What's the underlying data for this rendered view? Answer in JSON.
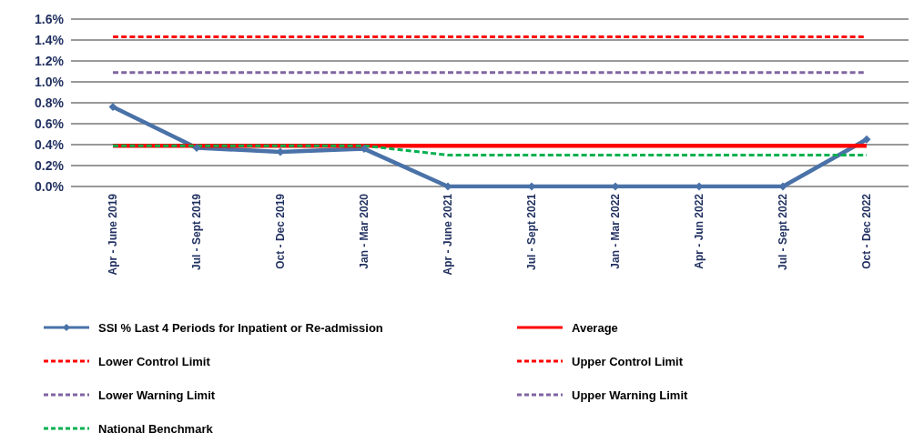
{
  "chart_data": {
    "type": "line",
    "categories": [
      "Apr - June 2019",
      "Jul - Sept 2019",
      "Oct - Dec 2019",
      "Jan - Mar 2020",
      "Apr - June 2021",
      "Jul - Sept 2021",
      "Jan - Mar 2022",
      "Apr - Jun 2022",
      "Jul - Sept 2022",
      "Oct - Dec 2022"
    ],
    "series": [
      {
        "name": "SSI % Last 4 Periods for Inpatient or Re-admission",
        "color": "#4a72a8",
        "marker": "diamond",
        "line_style": "solid",
        "values": [
          0.76,
          0.37,
          0.33,
          0.36,
          0,
          0,
          0,
          0,
          0,
          0.45
        ]
      },
      {
        "name": "Average",
        "color": "#ff0000",
        "marker": "none",
        "line_style": "solid",
        "values": [
          0.39,
          0.39,
          0.39,
          0.39,
          0.39,
          0.39,
          0.39,
          0.39,
          0.39,
          0.39
        ]
      },
      {
        "name": "Lower Control Limit",
        "color": "#ff0000",
        "marker": "none",
        "line_style": "dashed",
        "values": [
          null,
          null,
          null,
          null,
          null,
          null,
          null,
          null,
          null,
          null
        ]
      },
      {
        "name": "Upper Control Limit",
        "color": "#ff0000",
        "marker": "none",
        "line_style": "dashed",
        "values": [
          1.43,
          1.43,
          1.43,
          1.43,
          1.43,
          1.43,
          1.43,
          1.43,
          1.43,
          1.43
        ]
      },
      {
        "name": "Lower Warning Limit",
        "color": "#8064a2",
        "marker": "none",
        "line_style": "dashed",
        "values": [
          null,
          null,
          null,
          null,
          null,
          null,
          null,
          null,
          null,
          null
        ]
      },
      {
        "name": "Upper Warning Limit",
        "color": "#8064a2",
        "marker": "none",
        "line_style": "dashed",
        "values": [
          1.09,
          1.09,
          1.09,
          1.09,
          1.09,
          1.09,
          1.09,
          1.09,
          1.09,
          1.09
        ]
      },
      {
        "name": "National Benchmark",
        "color": "#00b050",
        "marker": "none",
        "line_style": "dashed",
        "values": [
          0.39,
          0.39,
          0.39,
          0.39,
          0.3,
          0.3,
          0.3,
          0.3,
          0.3,
          0.3
        ]
      }
    ],
    "ylim": [
      0,
      1.6
    ],
    "yticks": [
      {
        "value": 0,
        "label": "0.0%"
      },
      {
        "value": 0.2,
        "label": "0.2%"
      },
      {
        "value": 0.4,
        "label": "0.4%"
      },
      {
        "value": 0.6,
        "label": "0.6%"
      },
      {
        "value": 0.8,
        "label": "0.8%"
      },
      {
        "value": 1.0,
        "label": "1.0%"
      },
      {
        "value": 1.2,
        "label": "1.2%"
      },
      {
        "value": 1.4,
        "label": "1.4%"
      },
      {
        "value": 1.6,
        "label": "1.6%"
      }
    ],
    "grid": "y",
    "legend": "bottom"
  }
}
